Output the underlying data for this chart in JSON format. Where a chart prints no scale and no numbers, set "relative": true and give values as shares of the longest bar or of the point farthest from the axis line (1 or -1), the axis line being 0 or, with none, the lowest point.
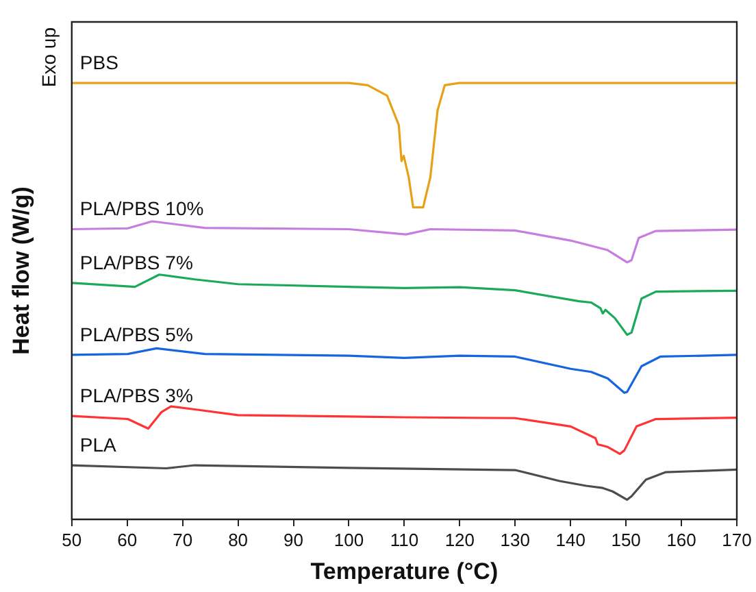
{
  "chart_data": {
    "type": "line",
    "xlabel": "Temperature (°C)",
    "ylabel": "Heat flow (W/g)",
    "annotations": [
      "Exo up"
    ],
    "relative": true,
    "xlim": [
      50,
      170
    ],
    "xticks": [
      50,
      60,
      70,
      80,
      90,
      100,
      110,
      120,
      130,
      140,
      150,
      160,
      170
    ],
    "marker": "none",
    "series": [
      {
        "name": "PBS",
        "color": "#e6a117",
        "x": [
          50,
          70,
          100,
          103.4,
          106.9,
          109,
          109.5,
          109.9,
          110.8,
          111.6,
          113.4,
          114.7,
          116,
          117.3,
          119.9,
          170
        ],
        "values": [
          1.0,
          1.0,
          1.0,
          0.995,
          0.971,
          0.904,
          0.821,
          0.833,
          0.784,
          0.715,
          0.715,
          0.784,
          0.937,
          0.995,
          1.0,
          1.0
        ]
      },
      {
        "name": "PLA/PBS 10%",
        "color": "#c77ce0",
        "x": [
          50,
          60.1,
          64.5,
          74,
          100,
          110.3,
          114.7,
          130,
          140,
          146.7,
          150.2,
          151,
          152.3,
          155.4,
          170
        ],
        "values": [
          0.665,
          0.667,
          0.683,
          0.668,
          0.665,
          0.653,
          0.665,
          0.662,
          0.639,
          0.617,
          0.589,
          0.594,
          0.645,
          0.661,
          0.664
        ]
      },
      {
        "name": "PLA/PBS 7%",
        "color": "#1aaa5a",
        "x": [
          50,
          61.4,
          65.8,
          72.2,
          80,
          110,
          120,
          130,
          141.5,
          143.7,
          145.4,
          145.8,
          146.3,
          148,
          150.2,
          151,
          152.8,
          155.4,
          170
        ],
        "values": [
          0.542,
          0.533,
          0.561,
          0.55,
          0.539,
          0.53,
          0.532,
          0.525,
          0.5,
          0.497,
          0.484,
          0.472,
          0.48,
          0.461,
          0.423,
          0.428,
          0.506,
          0.522,
          0.524
        ]
      },
      {
        "name": "PLA/PBS 5%",
        "color": "#1565e0",
        "x": [
          50,
          60.1,
          65.3,
          74,
          100,
          110,
          120,
          130,
          140,
          143.7,
          146.7,
          149.7,
          150.2,
          152.8,
          156.2,
          170
        ],
        "values": [
          0.377,
          0.379,
          0.392,
          0.379,
          0.375,
          0.37,
          0.375,
          0.373,
          0.345,
          0.338,
          0.323,
          0.29,
          0.292,
          0.351,
          0.373,
          0.377
        ]
      },
      {
        "name": "PLA/PBS 3%",
        "color": "#ff3333",
        "x": [
          50,
          60.1,
          63.8,
          66.2,
          67.9,
          72.2,
          80,
          110,
          130,
          140,
          144.5,
          144.9,
          146.7,
          148.9,
          149.7,
          151.9,
          155.4,
          170
        ],
        "values": [
          0.237,
          0.23,
          0.208,
          0.246,
          0.259,
          0.252,
          0.239,
          0.234,
          0.232,
          0.213,
          0.186,
          0.172,
          0.166,
          0.15,
          0.158,
          0.213,
          0.23,
          0.233
        ]
      },
      {
        "name": "PLA",
        "color": "#4d4d4d",
        "x": [
          50,
          67,
          72.2,
          100,
          130,
          138,
          142.8,
          145.8,
          147.6,
          150.2,
          151,
          153.6,
          157.1,
          170
        ],
        "values": [
          0.124,
          0.117,
          0.124,
          0.118,
          0.113,
          0.088,
          0.077,
          0.072,
          0.064,
          0.045,
          0.053,
          0.091,
          0.108,
          0.114
        ]
      }
    ]
  }
}
